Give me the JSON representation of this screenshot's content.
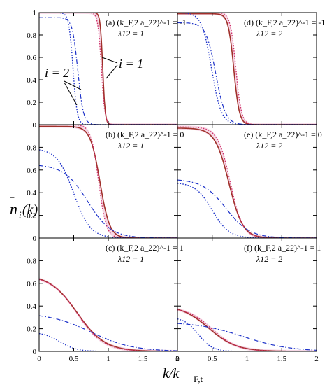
{
  "figure": {
    "ylabel_main": "n",
    "ylabel_sub": "i",
    "ylabel_arg": "(k)",
    "xlabel_main": "k/k",
    "xlabel_sub": "F,t",
    "annotation_i1": "i = 1",
    "annotation_i2": "i = 2"
  },
  "colors": {
    "i1_exact": "#a0302a",
    "i1_approx": "#d0306a",
    "i2": "#1a2fc8",
    "shade": "#f7d8e6"
  },
  "chart_data": [
    {
      "id": "a",
      "type": "line",
      "panel_label": "(a)",
      "coupling_label": "(k_F,2 a_22)^-1 = -1",
      "lambda_label": "λ12 = 1",
      "xlim": [
        0,
        2
      ],
      "ylim": [
        0,
        1
      ],
      "xticks": [
        0,
        0.5,
        1,
        1.5,
        2
      ],
      "yticks": [
        0,
        0.2,
        0.4,
        0.6,
        0.8,
        1
      ],
      "series": [
        {
          "style": "i1-solid",
          "k0": 0.92,
          "w": 0.018,
          "amp": 1.0,
          "x": [
            0,
            0.5,
            0.8,
            0.9,
            0.92,
            0.95,
            1.0,
            2.0
          ],
          "y": [
            1.0,
            1.0,
            1.0,
            0.76,
            0.5,
            0.16,
            0.01,
            0.0
          ]
        },
        {
          "style": "i1-dotted",
          "k0": 0.9,
          "w": 0.025,
          "amp": 1.0,
          "x": [
            0,
            0.5,
            0.8,
            0.9,
            0.95,
            1.0,
            2.0
          ],
          "y": [
            1.0,
            1.0,
            0.98,
            0.5,
            0.12,
            0.02,
            0.0
          ]
        },
        {
          "style": "i2-dashdot",
          "k0": 0.56,
          "w": 0.04,
          "amp": 0.955,
          "x": [
            0,
            0.3,
            0.5,
            0.56,
            0.6,
            0.7,
            2.0
          ],
          "y": [
            0.95,
            0.94,
            0.77,
            0.48,
            0.27,
            0.03,
            0.0
          ]
        },
        {
          "style": "i2-dotted",
          "k0": 0.49,
          "w": 0.03,
          "amp": 1.0,
          "x": [
            0,
            0.3,
            0.45,
            0.49,
            0.55,
            0.6,
            2.0
          ],
          "y": [
            1.0,
            1.0,
            0.8,
            0.5,
            0.12,
            0.03,
            0.0
          ]
        }
      ]
    },
    {
      "id": "b",
      "type": "line",
      "panel_label": "(b)",
      "coupling_label": "(k_F,2 a_22)^-1 = 0",
      "lambda_label": "λ12 = 1",
      "xlim": [
        0,
        2
      ],
      "ylim": [
        0,
        1
      ],
      "xticks": [
        0,
        0.5,
        1,
        1.5,
        2
      ],
      "yticks": [
        0,
        0.2,
        0.4,
        0.6,
        0.8
      ],
      "series": [
        {
          "style": "i1-solid",
          "k0": 0.88,
          "w": 0.07,
          "amp": 0.985,
          "x": [
            0,
            0.5,
            0.7,
            0.88,
            1.0,
            1.2,
            2.0
          ],
          "y": [
            0.98,
            0.97,
            0.9,
            0.49,
            0.15,
            0.03,
            0.0
          ]
        },
        {
          "style": "i1-dotted",
          "k0": 0.86,
          "w": 0.055,
          "amp": 1.0,
          "x": [
            0,
            0.5,
            0.7,
            0.86,
            1.0,
            1.2,
            2.0
          ],
          "y": [
            1.0,
            0.99,
            0.95,
            0.5,
            0.08,
            0.01,
            0.0
          ]
        },
        {
          "style": "i2-dashdot",
          "k0": 0.7,
          "w": 0.17,
          "amp": 0.65,
          "x": [
            0,
            0.3,
            0.5,
            0.7,
            1.0,
            1.5,
            2.0
          ],
          "y": [
            0.62,
            0.6,
            0.49,
            0.33,
            0.1,
            0.02,
            0.0
          ]
        },
        {
          "style": "i2-dotted",
          "k0": 0.5,
          "w": 0.12,
          "amp": 0.79,
          "x": [
            0,
            0.3,
            0.5,
            0.7,
            1.0,
            2.0
          ],
          "y": [
            0.76,
            0.66,
            0.4,
            0.14,
            0.02,
            0.0
          ]
        }
      ]
    },
    {
      "id": "c",
      "type": "line",
      "panel_label": "(c)",
      "coupling_label": "(k_F,2 a_22)^-1 = 1",
      "lambda_label": "λ12 = 1",
      "xlim": [
        0,
        2
      ],
      "ylim": [
        0,
        1
      ],
      "xticks": [
        0,
        0.5,
        1,
        1.5,
        2
      ],
      "yticks": [
        0,
        0.2,
        0.4,
        0.6,
        0.8
      ],
      "series": [
        {
          "style": "i1-solid",
          "k0": 0.55,
          "w": 0.2,
          "amp": 0.68,
          "x": [
            0,
            0.25,
            0.5,
            0.75,
            1.0,
            1.5,
            2.0
          ],
          "y": [
            0.63,
            0.58,
            0.42,
            0.19,
            0.06,
            0.01,
            0.0
          ]
        },
        {
          "style": "i1-dotted",
          "k0": 0.55,
          "w": 0.19,
          "amp": 0.67,
          "x": [
            0,
            0.25,
            0.5,
            0.75,
            1.0,
            1.5,
            2.0
          ],
          "y": [
            0.62,
            0.57,
            0.41,
            0.18,
            0.05,
            0.01,
            0.0
          ]
        },
        {
          "style": "i2-dashdot",
          "k0": 0.75,
          "w": 0.3,
          "amp": 0.34,
          "x": [
            0,
            0.5,
            0.75,
            1.0,
            1.5,
            2.0
          ],
          "y": [
            0.3,
            0.26,
            0.17,
            0.1,
            0.03,
            0.01
          ]
        },
        {
          "style": "i2-dotted",
          "k0": 0.3,
          "w": 0.12,
          "amp": 0.17,
          "x": [
            0,
            0.25,
            0.5,
            0.75,
            1.0
          ],
          "y": [
            0.14,
            0.1,
            0.04,
            0.01,
            0.0
          ]
        }
      ]
    },
    {
      "id": "d",
      "type": "line",
      "panel_label": "(d)",
      "coupling_label": "(k_F,2 a_22)^-1 = -1",
      "lambda_label": "λ12 = 2",
      "xlim": [
        0,
        2
      ],
      "ylim": [
        0,
        1
      ],
      "xticks": [
        0,
        0.5,
        1,
        1.5,
        2
      ],
      "yticks": [
        0,
        0.2,
        0.4,
        0.6,
        0.8,
        1
      ],
      "series": [
        {
          "style": "i1-solid",
          "k0": 0.81,
          "w": 0.04,
          "amp": 0.99,
          "x": [
            0,
            0.5,
            0.7,
            0.81,
            0.9,
            1.0,
            2.0
          ],
          "y": [
            0.99,
            0.99,
            0.93,
            0.5,
            0.1,
            0.01,
            0.0
          ]
        },
        {
          "style": "i1-dotted",
          "k0": 0.84,
          "w": 0.04,
          "amp": 1.0,
          "x": [
            0,
            0.5,
            0.75,
            0.84,
            0.9,
            1.0,
            2.0
          ],
          "y": [
            1.0,
            1.0,
            0.9,
            0.5,
            0.18,
            0.02,
            0.0
          ]
        },
        {
          "style": "i2-dashdot",
          "k0": 0.55,
          "w": 0.07,
          "amp": 0.91,
          "x": [
            0,
            0.3,
            0.5,
            0.55,
            0.7,
            1.0,
            2.0
          ],
          "y": [
            0.89,
            0.82,
            0.6,
            0.45,
            0.08,
            0.0,
            0.0
          ]
        },
        {
          "style": "i2-dotted",
          "k0": 0.49,
          "w": 0.07,
          "amp": 1.0,
          "x": [
            0,
            0.3,
            0.49,
            0.6,
            0.8,
            2.0
          ],
          "y": [
            1.0,
            0.93,
            0.5,
            0.17,
            0.01,
            0.0
          ]
        }
      ]
    },
    {
      "id": "e",
      "type": "line",
      "panel_label": "(e)",
      "coupling_label": "(k_F,2 a_22)^-1 = 0",
      "lambda_label": "λ12 = 2",
      "xlim": [
        0,
        2
      ],
      "ylim": [
        0,
        1
      ],
      "xticks": [
        0,
        0.5,
        1,
        1.5,
        2
      ],
      "yticks": [
        0,
        0.2,
        0.4,
        0.6,
        0.8
      ],
      "series": [
        {
          "style": "i1-solid",
          "k0": 0.74,
          "w": 0.1,
          "amp": 0.97,
          "x": [
            0,
            0.3,
            0.5,
            0.74,
            1.0,
            1.5,
            2.0
          ],
          "y": [
            0.94,
            0.91,
            0.83,
            0.48,
            0.07,
            0.01,
            0.0
          ]
        },
        {
          "style": "i1-dotted",
          "k0": 0.76,
          "w": 0.09,
          "amp": 0.98,
          "x": [
            0,
            0.3,
            0.5,
            0.76,
            1.0,
            1.5,
            2.0
          ],
          "y": [
            0.96,
            0.93,
            0.86,
            0.49,
            0.06,
            0.0,
            0.0
          ]
        },
        {
          "style": "i2-dashdot",
          "k0": 0.7,
          "w": 0.17,
          "amp": 0.52,
          "x": [
            0,
            0.3,
            0.5,
            0.7,
            1.0,
            1.5,
            2.0
          ],
          "y": [
            0.5,
            0.46,
            0.37,
            0.26,
            0.09,
            0.02,
            0.0
          ]
        },
        {
          "style": "i2-dotted",
          "k0": 0.5,
          "w": 0.12,
          "amp": 0.49,
          "x": [
            0,
            0.3,
            0.5,
            0.75,
            1.0,
            2.0
          ],
          "y": [
            0.47,
            0.4,
            0.24,
            0.06,
            0.01,
            0.0
          ]
        }
      ]
    },
    {
      "id": "f",
      "type": "line",
      "panel_label": "(f)",
      "coupling_label": "(k_F,2 a_22)^-1 = 1",
      "lambda_label": "λ12 = 2",
      "xlim": [
        0,
        2
      ],
      "ylim": [
        0,
        1
      ],
      "xticks": [
        0,
        0.5,
        1,
        1.5,
        2
      ],
      "yticks": [
        0,
        0.2,
        0.4,
        0.6,
        0.8
      ],
      "series": [
        {
          "style": "i1-solid",
          "k0": 0.45,
          "w": 0.2,
          "amp": 0.41,
          "x": [
            0,
            0.25,
            0.5,
            0.75,
            1.0,
            1.5
          ],
          "y": [
            0.35,
            0.3,
            0.19,
            0.08,
            0.02,
            0.0
          ]
        },
        {
          "style": "i1-dotted",
          "k0": 0.5,
          "w": 0.18,
          "amp": 0.39,
          "x": [
            0,
            0.25,
            0.5,
            0.75,
            1.0,
            1.5
          ],
          "y": [
            0.37,
            0.31,
            0.2,
            0.07,
            0.01,
            0.0
          ]
        },
        {
          "style": "i2-dashdot",
          "k0": 0.95,
          "w": 0.33,
          "amp": 0.26,
          "x": [
            0,
            0.5,
            1.0,
            1.5,
            2.0
          ],
          "y": [
            0.24,
            0.2,
            0.12,
            0.04,
            0.01
          ]
        },
        {
          "style": "i2-dotted",
          "k0": 0.3,
          "w": 0.1,
          "amp": 0.3,
          "x": [
            0,
            0.25,
            0.5,
            0.75,
            1.0
          ],
          "y": [
            0.28,
            0.17,
            0.04,
            0.0,
            0.0
          ]
        }
      ]
    }
  ]
}
